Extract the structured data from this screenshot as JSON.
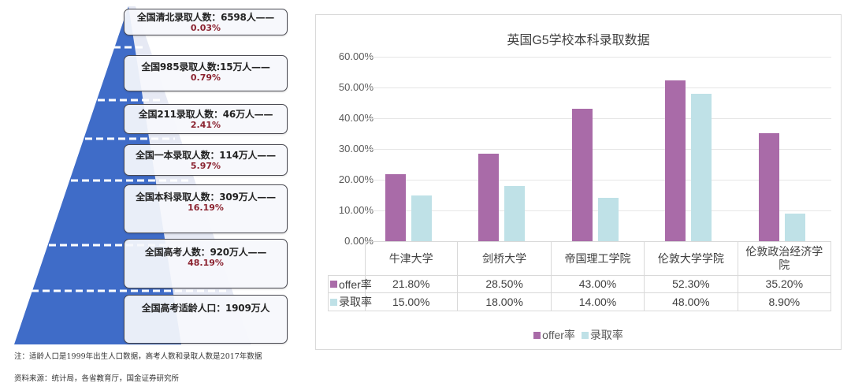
{
  "pyramid": {
    "tiers": [
      {
        "label": "全国清北录取人数：6598人——",
        "pct": "0.03%"
      },
      {
        "label": "全国985录取人数:15万人——",
        "pct": "0.79%"
      },
      {
        "label": "全国211录取人数：46万人——",
        "pct": "2.41%"
      },
      {
        "label": "全国一本录取人数：114万人——",
        "pct": "5.97%"
      },
      {
        "label": "全国本科录取人数：309万人——",
        "pct": "16.19%"
      },
      {
        "label": "全国高考人数：920万人——",
        "pct": "48.19%"
      },
      {
        "label": "全国高考适龄人口：1909万人",
        "pct": ""
      }
    ],
    "note": "注：适龄人口是1999年出生人口数据，高考人数和录取人数是2017年数据",
    "source": "资料来源：统计局，各省教育厅，国金证券研究所",
    "colors": {
      "fill": "#3f6cc8",
      "highlight": "#e6e9f4",
      "pct_text": "#8b2330"
    }
  },
  "chart": {
    "title": "英国G5学校本科录取数据",
    "y_ticks": [
      "60.00%",
      "50.00%",
      "40.00%",
      "30.00%",
      "20.00%",
      "10.00%",
      "0.00%"
    ],
    "categories": [
      "牛津大学",
      "剑桥大学",
      "帝国理工学院",
      "伦敦大学学院",
      "伦敦政治经济学院"
    ],
    "series": [
      {
        "name": "offer率",
        "color": "#a96ba8",
        "values_text": [
          "21.80%",
          "28.50%",
          "43.00%",
          "52.30%",
          "35.20%"
        ]
      },
      {
        "name": "录取率",
        "color": "#bfe1e7",
        "values_text": [
          "15.00%",
          "18.00%",
          "14.00%",
          "48.00%",
          "8.90%"
        ]
      }
    ],
    "legend": [
      "offer率",
      "录取率"
    ]
  },
  "chart_data": [
    {
      "type": "bar",
      "title": "英国G5学校本科录取数据",
      "categories": [
        "牛津大学",
        "剑桥大学",
        "帝国理工学院",
        "伦敦大学学院",
        "伦敦政治经济学院"
      ],
      "series": [
        {
          "name": "offer率",
          "values": [
            21.8,
            28.5,
            43.0,
            52.3,
            35.2
          ]
        },
        {
          "name": "录取率",
          "values": [
            15.0,
            18.0,
            14.0,
            48.0,
            8.9
          ]
        }
      ],
      "xlabel": "",
      "ylabel": "",
      "ylim": [
        0,
        60
      ],
      "y_tick_format": "0.00%",
      "grid": true,
      "legend_position": "bottom",
      "data_table": true
    },
    {
      "type": "table",
      "title": "录取人数金字塔",
      "rows": [
        {
          "tier": "全国清北录取人数",
          "count": "6598人",
          "pct": 0.03
        },
        {
          "tier": "全国985录取人数",
          "count": "15万人",
          "pct": 0.79
        },
        {
          "tier": "全国211录取人数",
          "count": "46万人",
          "pct": 2.41
        },
        {
          "tier": "全国一本录取人数",
          "count": "114万人",
          "pct": 5.97
        },
        {
          "tier": "全国本科录取人数",
          "count": "309万人",
          "pct": 16.19
        },
        {
          "tier": "全国高考人数",
          "count": "920万人",
          "pct": 48.19
        },
        {
          "tier": "全国高考适龄人口",
          "count": "1909万人",
          "pct": null
        }
      ]
    }
  ]
}
